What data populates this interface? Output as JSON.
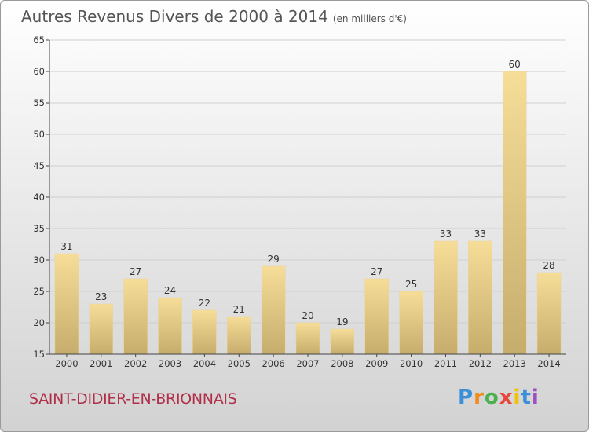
{
  "header": {
    "title": "Autres Revenus Divers de 2000 à 2014",
    "subtitle": "(en milliers d'€)"
  },
  "footer": {
    "commune": "SAINT-DIDIER-EN-BRIONNAIS"
  },
  "logo": {
    "letters": [
      "P",
      "r",
      "o",
      "x",
      "i",
      "t",
      "i"
    ],
    "colors": [
      "#3a8fd8",
      "#f08c1e",
      "#4caf50",
      "#e8463c",
      "#f2c200",
      "#3a8fd8",
      "#9c4fc4"
    ]
  },
  "colors": {
    "bar_light": "#f6dd98",
    "bar_dark": "#c6ad6c",
    "grid": "#cfcfcf"
  },
  "chart_data": {
    "type": "bar",
    "title": "Autres Revenus Divers de 2000 à 2014",
    "subtitle": "(en milliers d'€)",
    "categories": [
      "2000",
      "2001",
      "2002",
      "2003",
      "2004",
      "2005",
      "2006",
      "2007",
      "2008",
      "2009",
      "2010",
      "2011",
      "2012",
      "2013",
      "2014"
    ],
    "values": [
      31,
      23,
      27,
      24,
      22,
      21,
      29,
      20,
      19,
      27,
      25,
      33,
      33,
      60,
      28
    ],
    "ylim": [
      15,
      65
    ],
    "yticks": [
      15,
      20,
      25,
      30,
      35,
      40,
      45,
      50,
      55,
      60,
      65
    ],
    "grid": true,
    "xlabel": "",
    "ylabel": ""
  }
}
